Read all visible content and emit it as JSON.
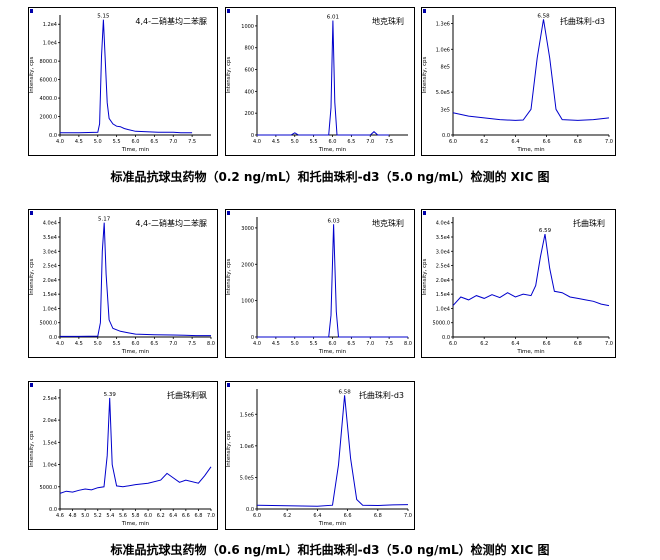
{
  "captions": [
    "标准品抗球虫药物（0.2 ng/mL）和托曲珠利-d3（5.0 ng/mL）检测的 XIC 图",
    "标准品抗球虫药物（0.6 ng/mL）和托曲珠利-d3（5.0 ng/mL）检测的 XIC 图"
  ],
  "chart_data": [
    {
      "type": "line",
      "title": "4,4-二硝基均二苯脲",
      "xlabel": "Time, min",
      "ylabel": "Intensity, cps",
      "xlim": [
        4.0,
        8.0
      ],
      "ylim": [
        0,
        13000
      ],
      "xticks": [
        4.0,
        4.5,
        5.0,
        5.5,
        6.0,
        6.5,
        7.0,
        7.5
      ],
      "xtick_labels": [
        "4.0",
        "4.5",
        "5.0",
        "5.5",
        "6.0",
        "6.5",
        "7.0",
        "7.5"
      ],
      "yticks": [
        0,
        2000,
        4000,
        6000,
        8000,
        10000,
        12000
      ],
      "ytick_labels": [
        "0.0",
        "2000.0",
        "4000.0",
        "6000.0",
        "8000.0",
        "1.0e4",
        "1.2e4"
      ],
      "peak_label": "5.15",
      "series": [
        {
          "x": [
            4.0,
            4.5,
            5.0,
            5.05,
            5.1,
            5.15,
            5.2,
            5.25,
            5.3,
            5.4,
            5.5,
            5.6,
            5.7,
            5.8,
            6.0,
            6.3,
            6.6,
            7.0,
            7.2,
            7.5
          ],
          "y": [
            250,
            250,
            300,
            1200,
            8500,
            12500,
            8000,
            3500,
            1800,
            1200,
            950,
            900,
            700,
            600,
            400,
            350,
            300,
            300,
            250,
            250
          ]
        }
      ]
    },
    {
      "type": "line",
      "title": "地克珠利",
      "xlabel": "Time, min",
      "ylabel": "Intensity, cps",
      "xlim": [
        4.0,
        8.0
      ],
      "ylim": [
        0,
        1100
      ],
      "xticks": [
        4.0,
        4.5,
        5.0,
        5.5,
        6.0,
        6.5,
        7.0,
        7.5
      ],
      "xtick_labels": [
        "4.0",
        "4.5",
        "5.0",
        "5.5",
        "6.0",
        "6.5",
        "7.0",
        "7.5"
      ],
      "yticks": [
        0,
        200,
        400,
        600,
        800,
        1000
      ],
      "ytick_labels": [
        "0",
        "200",
        "400",
        "600",
        "800",
        "1000"
      ],
      "peak_label": "6.01",
      "series": [
        {
          "x": [
            4.0,
            4.9,
            5.0,
            5.1,
            5.5,
            5.9,
            5.96,
            6.01,
            6.06,
            6.12,
            6.5,
            7.0,
            7.1,
            7.2,
            7.5
          ],
          "y": [
            0,
            0,
            20,
            0,
            0,
            0,
            250,
            1050,
            300,
            0,
            0,
            0,
            30,
            0,
            0
          ]
        }
      ]
    },
    {
      "type": "line",
      "title": "托曲珠利-d3",
      "xlabel": "Time, min",
      "ylabel": "Intensity, cps",
      "xlim": [
        6.0,
        7.0
      ],
      "ylim": [
        0,
        1400000
      ],
      "xticks": [
        6.0,
        6.2,
        6.4,
        6.6,
        6.8,
        7.0
      ],
      "xtick_labels": [
        "6.0",
        "6.2",
        "6.4",
        "6.6",
        "6.8",
        "7.0"
      ],
      "yticks": [
        0,
        500000,
        1000000,
        1300000
      ],
      "ytick_labels": [
        "0.0",
        "5.0e5",
        "1.0e6",
        "1.3e6"
      ],
      "extra_yticks": [
        300000,
        800000
      ],
      "extra_ytick_labels": [
        "3e5",
        "8e5"
      ],
      "peak_label": "6.58",
      "series": [
        {
          "x": [
            6.0,
            6.1,
            6.2,
            6.3,
            6.4,
            6.45,
            6.5,
            6.54,
            6.58,
            6.62,
            6.66,
            6.7,
            6.8,
            6.9,
            7.0
          ],
          "y": [
            260000,
            220000,
            200000,
            180000,
            170000,
            175000,
            300000,
            900000,
            1350000,
            900000,
            300000,
            180000,
            170000,
            180000,
            200000
          ]
        }
      ]
    },
    {
      "type": "line",
      "title": "4,4-二硝基均二苯脲",
      "xlabel": "Time, min",
      "ylabel": "Intensity, cps",
      "xlim": [
        4.0,
        8.0
      ],
      "ylim": [
        0,
        42000
      ],
      "xticks": [
        4.0,
        4.5,
        5.0,
        5.5,
        6.0,
        6.5,
        7.0,
        7.5,
        8.0
      ],
      "xtick_labels": [
        "4.0",
        "4.5",
        "5.0",
        "5.5",
        "6.0",
        "6.5",
        "7.0",
        "7.5",
        "8.0"
      ],
      "yticks": [
        0,
        5000,
        10000,
        15000,
        20000,
        25000,
        30000,
        35000,
        40000
      ],
      "ytick_labels": [
        "0.0",
        "5000.0",
        "1.0e4",
        "1.5e4",
        "2.0e4",
        "2.5e4",
        "3.0e4",
        "3.5e4",
        "4.0e4"
      ],
      "peak_label": "5.17",
      "series": [
        {
          "x": [
            4.0,
            4.5,
            5.0,
            5.07,
            5.12,
            5.17,
            5.22,
            5.3,
            5.4,
            5.6,
            5.8,
            6.0,
            6.5,
            7.0,
            7.3,
            7.6,
            8.0
          ],
          "y": [
            200,
            200,
            300,
            5000,
            30000,
            40000,
            22000,
            6000,
            3000,
            2000,
            1500,
            1000,
            800,
            700,
            600,
            500,
            500
          ]
        }
      ]
    },
    {
      "type": "line",
      "title": "地克珠利",
      "xlabel": "Time, min",
      "ylabel": "Intensity, cps",
      "xlim": [
        4.0,
        8.0
      ],
      "ylim": [
        0,
        3300
      ],
      "xticks": [
        4.0,
        4.5,
        5.0,
        5.5,
        6.0,
        6.5,
        7.0,
        7.5,
        8.0
      ],
      "xtick_labels": [
        "4.0",
        "4.5",
        "5.0",
        "5.5",
        "6.0",
        "6.5",
        "7.0",
        "7.5",
        "8.0"
      ],
      "yticks": [
        0,
        1000,
        2000,
        3000
      ],
      "ytick_labels": [
        "0",
        "1000",
        "2000",
        "3000"
      ],
      "peak_label": "6.03",
      "series": [
        {
          "x": [
            4.0,
            5.9,
            5.96,
            6.03,
            6.1,
            6.16,
            8.0
          ],
          "y": [
            0,
            0,
            600,
            3100,
            700,
            0,
            0
          ]
        }
      ]
    },
    {
      "type": "line",
      "title": "托曲珠利",
      "xlabel": "Time, min",
      "ylabel": "Intensity, cps",
      "xlim": [
        6.0,
        7.0
      ],
      "ylim": [
        0,
        42000
      ],
      "xticks": [
        6.0,
        6.2,
        6.4,
        6.6,
        6.8,
        7.0
      ],
      "xtick_labels": [
        "6.0",
        "6.2",
        "6.4",
        "6.6",
        "6.8",
        "7.0"
      ],
      "yticks": [
        0,
        5000,
        10000,
        15000,
        20000,
        25000,
        30000,
        35000,
        40000
      ],
      "ytick_labels": [
        "0.0",
        "5000.0",
        "1.0e4",
        "1.5e4",
        "2.0e4",
        "2.5e4",
        "3.0e4",
        "3.5e4",
        "4.0e4"
      ],
      "peak_label": "6.59",
      "series": [
        {
          "x": [
            6.0,
            6.05,
            6.1,
            6.15,
            6.2,
            6.25,
            6.3,
            6.35,
            6.4,
            6.45,
            6.5,
            6.53,
            6.56,
            6.59,
            6.62,
            6.65,
            6.7,
            6.75,
            6.8,
            6.85,
            6.9,
            6.95,
            7.0
          ],
          "y": [
            11000,
            14000,
            13000,
            14500,
            13500,
            14800,
            13800,
            15500,
            14000,
            15000,
            14500,
            18000,
            28000,
            36000,
            24000,
            16000,
            15500,
            14000,
            13500,
            13000,
            12500,
            11500,
            11000
          ]
        }
      ]
    },
    {
      "type": "line",
      "title": "托曲珠利砜",
      "xlabel": "Time, min",
      "ylabel": "Intensity, cps",
      "xlim": [
        4.6,
        7.0
      ],
      "ylim": [
        0,
        27000
      ],
      "xticks": [
        4.6,
        4.8,
        5.0,
        5.2,
        5.4,
        5.6,
        5.8,
        6.0,
        6.2,
        6.4,
        6.6,
        6.8,
        7.0
      ],
      "xtick_labels": [
        "4.6",
        "4.8",
        "5.0",
        "5.2",
        "5.4",
        "5.6",
        "5.8",
        "6.0",
        "6.2",
        "6.4",
        "6.6",
        "6.8",
        "7.0"
      ],
      "yticks": [
        0,
        5000,
        10000,
        15000,
        20000,
        25000
      ],
      "ytick_labels": [
        "0.0",
        "5000.0",
        "1.0e4",
        "1.5e4",
        "2.0e4",
        "2.5e4"
      ],
      "peak_label": "5.39",
      "series": [
        {
          "x": [
            4.6,
            4.7,
            4.8,
            4.9,
            5.0,
            5.1,
            5.2,
            5.3,
            5.35,
            5.39,
            5.43,
            5.5,
            5.6,
            5.8,
            6.0,
            6.2,
            6.3,
            6.4,
            6.5,
            6.6,
            6.8,
            6.9,
            7.0
          ],
          "y": [
            3500,
            4000,
            3800,
            4200,
            4500,
            4300,
            4800,
            5000,
            12000,
            25000,
            10000,
            5200,
            5000,
            5500,
            5800,
            6500,
            8000,
            7000,
            6000,
            6500,
            5800,
            7500,
            9500
          ]
        }
      ]
    },
    {
      "type": "line",
      "title": "托曲珠利-d3",
      "xlabel": "Time, min",
      "ylabel": "Intensity, cps",
      "xlim": [
        6.0,
        7.0
      ],
      "ylim": [
        0,
        1900000
      ],
      "xticks": [
        6.0,
        6.2,
        6.4,
        6.6,
        6.8,
        7.0
      ],
      "xtick_labels": [
        "6.0",
        "6.2",
        "6.4",
        "6.6",
        "6.8",
        "7.0"
      ],
      "yticks": [
        0,
        500000,
        1000000,
        1500000
      ],
      "ytick_labels": [
        "0.0",
        "5.0e5",
        "1.0e6",
        "1.5e6"
      ],
      "peak_label": "6.58",
      "series": [
        {
          "x": [
            6.0,
            6.2,
            6.4,
            6.5,
            6.54,
            6.58,
            6.62,
            6.66,
            6.7,
            6.8,
            6.9,
            7.0
          ],
          "y": [
            60000,
            50000,
            45000,
            60000,
            700000,
            1800000,
            800000,
            150000,
            60000,
            55000,
            65000,
            70000
          ]
        }
      ]
    }
  ]
}
